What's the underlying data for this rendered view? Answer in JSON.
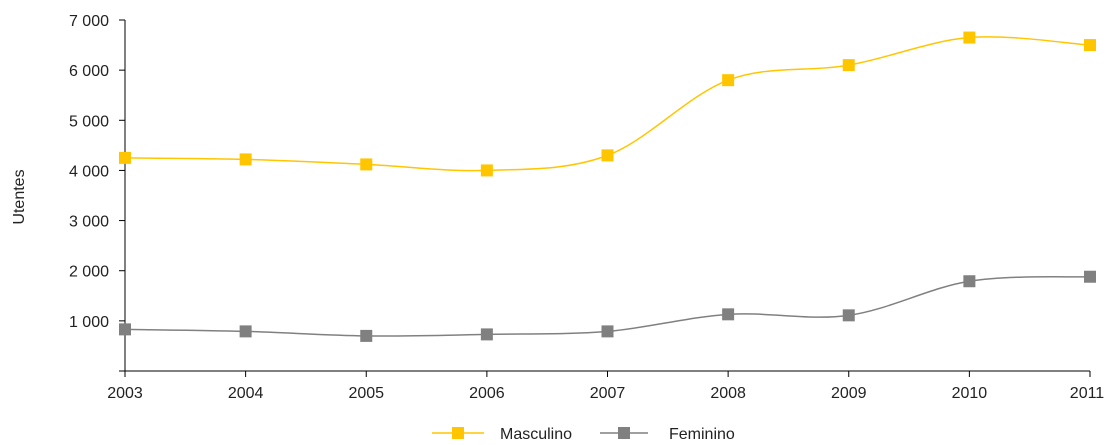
{
  "chart_data": {
    "type": "line",
    "title": "",
    "xlabel": "",
    "ylabel": "Utentes",
    "categories": [
      "2003",
      "2004",
      "2005",
      "2006",
      "2007",
      "2008",
      "2009",
      "2010",
      "2011"
    ],
    "ylim": [
      0,
      7000
    ],
    "y_ticks": [
      1000,
      2000,
      3000,
      4000,
      5000,
      6000,
      7000
    ],
    "y_tick_labels": [
      "1 000",
      "2 000",
      "3 000",
      "4 000",
      "5 000",
      "6 000",
      "7 000"
    ],
    "grid": false,
    "legend_position": "bottom",
    "series": [
      {
        "name": "Masculino",
        "color": "#FFC600",
        "marker": "square",
        "values": [
          4250,
          4220,
          4120,
          4000,
          4300,
          5800,
          6100,
          6650,
          6500
        ]
      },
      {
        "name": "Feminino",
        "color": "#808080",
        "marker": "square",
        "values": [
          830,
          790,
          700,
          730,
          790,
          1130,
          1110,
          1790,
          1880
        ]
      }
    ]
  }
}
